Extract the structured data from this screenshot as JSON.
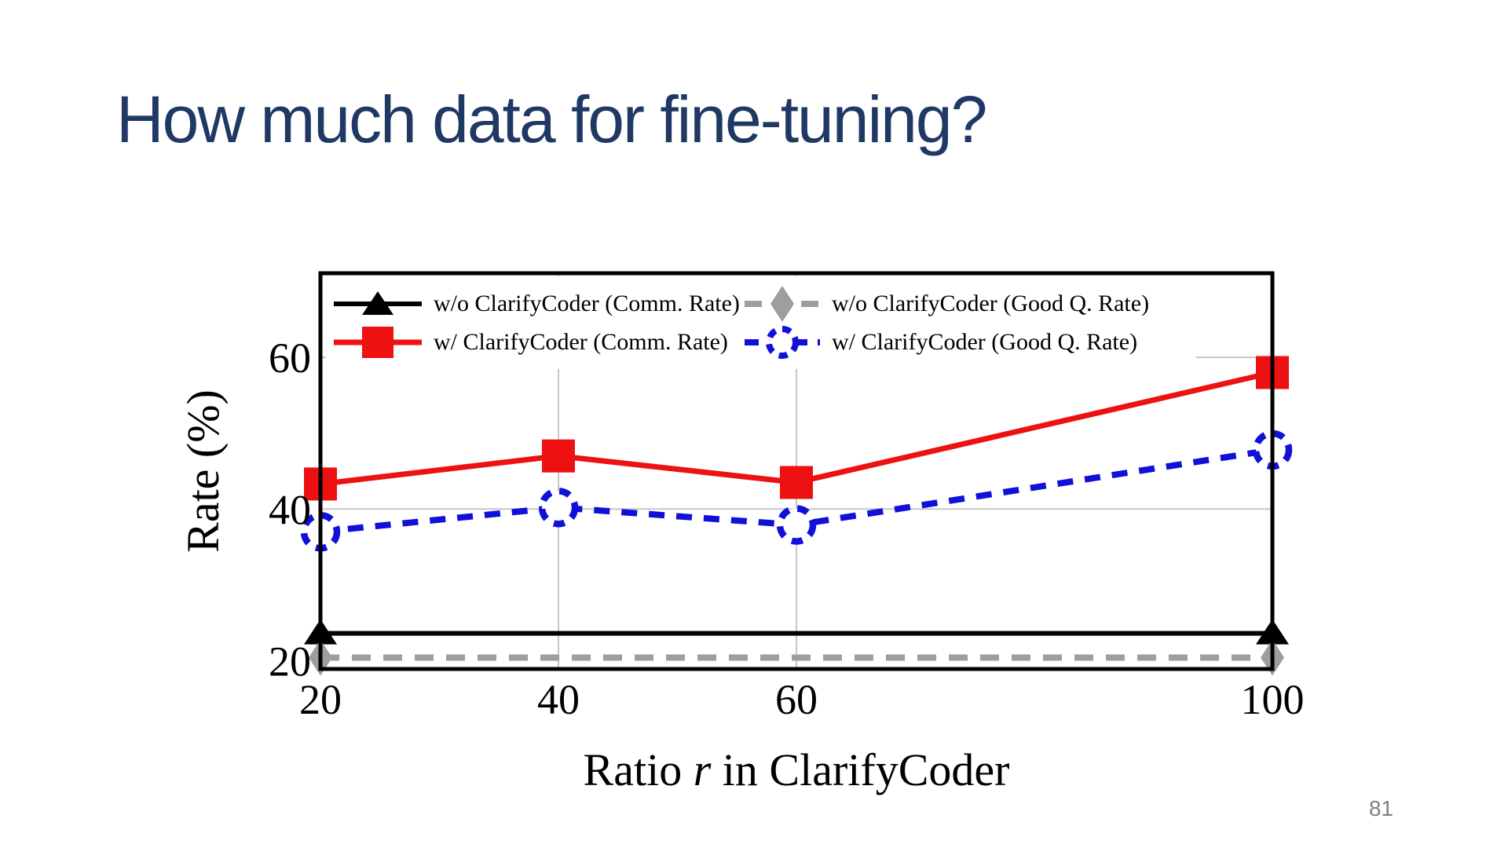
{
  "slide": {
    "title": "How much data for fine-tuning?",
    "page_number": "81"
  },
  "chart_data": {
    "type": "line",
    "xlabel": "Ratio r in ClarifyCoder",
    "xlabel_parts": [
      "Ratio ",
      "r",
      " in ClarifyCoder"
    ],
    "ylabel": "Rate (%)",
    "x": [
      20,
      40,
      60,
      100
    ],
    "xticks": [
      20,
      40,
      60,
      100
    ],
    "yticks": [
      20,
      40,
      60
    ],
    "xlim": [
      20,
      100
    ],
    "ylim": [
      18.9,
      71.1
    ],
    "grid": true,
    "grid_xticks": [
      40,
      60
    ],
    "grid_yticks": [
      40,
      60
    ],
    "grid_color": "#c6c6c6",
    "legend_position": "inside-top-left",
    "series": [
      {
        "name": "w/o ClarifyCoder (Comm. Rate)",
        "values": [
          23.6,
          23.6,
          23.6,
          23.6
        ],
        "color": "#000000",
        "line": "solid",
        "line_width": 6,
        "marker": "triangle",
        "markers_at_x": [
          20,
          100
        ]
      },
      {
        "name": "w/ ClarifyCoder (Comm. Rate)",
        "values": [
          43.3,
          47.0,
          43.5,
          58.0
        ],
        "color": "#ee1111",
        "line": "solid",
        "line_width": 7,
        "marker": "square",
        "markers_at_x": [
          20,
          40,
          60,
          100
        ]
      },
      {
        "name": "w/o ClarifyCoder (Good Q. Rate)",
        "values": [
          20.4,
          20.4,
          20.4,
          20.4
        ],
        "color": "#9e9e9e",
        "line": "dashed",
        "line_width": 8,
        "marker": "diamond",
        "markers_at_x": [
          20,
          100
        ]
      },
      {
        "name": "w/ ClarifyCoder (Good Q. Rate)",
        "values": [
          37.0,
          40.2,
          37.9,
          47.8
        ],
        "color": "#1010d8",
        "line": "dashed",
        "line_width": 8,
        "marker": "circle-dashed",
        "markers_at_x": [
          20,
          40,
          60,
          100
        ]
      }
    ]
  }
}
